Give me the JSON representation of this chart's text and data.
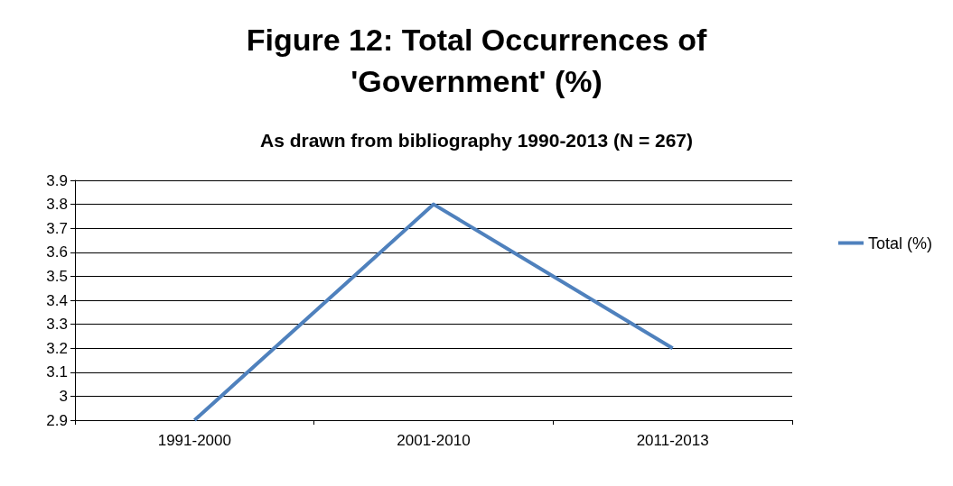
{
  "chart_data": {
    "type": "line",
    "title": "Figure 12: Total Occurrences of\n'Government' (%)",
    "subtitle": "As drawn from bibliography 1990-2013 (N = 267)",
    "categories": [
      "1991-2000",
      "2001-2010",
      "2011-2013"
    ],
    "series": [
      {
        "name": "Total (%)",
        "color": "#4f81bd",
        "values": [
          2.9,
          3.8,
          3.2
        ]
      }
    ],
    "ylim": [
      2.9,
      3.9
    ],
    "yticks": [
      2.9,
      3,
      3.1,
      3.2,
      3.3,
      3.4,
      3.5,
      3.6,
      3.7,
      3.8,
      3.9
    ],
    "grid": "y",
    "legend": "right",
    "marker": "none",
    "line_style": "solid"
  }
}
